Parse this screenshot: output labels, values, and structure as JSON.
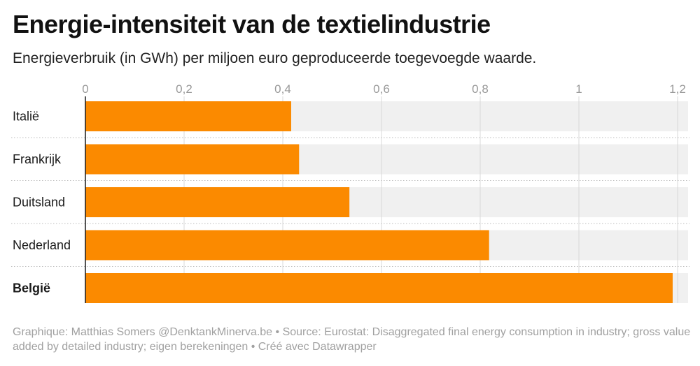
{
  "title": "Energie-intensiteit van de textielindustrie",
  "subtitle": "Energieverbruik (in GWh) per miljoen euro geproduceerde toegevoegde waarde.",
  "footer": {
    "credit": "Graphique: Matthias Somers @DenktankMinerva.be",
    "sep1": " • ",
    "source": "Source: Eurostat: Disaggregated final energy consumption in industry; gross value added by detailed industry; eigen berekeningen",
    "sep2": " • ",
    "tool": "Créé avec Datawrapper"
  },
  "colors": {
    "bar": "#fb8a00",
    "track": "#f0f0f0",
    "grid": "#d9d9d9",
    "axis": "#1a1a1a"
  },
  "chart_data": {
    "type": "bar",
    "orientation": "horizontal",
    "categories": [
      "Italië",
      "Frankrijk",
      "Duitsland",
      "Nederland",
      "België"
    ],
    "highlight": "België",
    "values": [
      0.417,
      0.433,
      0.535,
      0.818,
      1.19
    ],
    "xlim": [
      0,
      1.2
    ],
    "ticks": [
      0,
      0.2,
      0.4,
      0.6,
      0.8,
      1,
      1.2
    ],
    "tick_labels": [
      "0",
      "0,2",
      "0,4",
      "0,6",
      "0,8",
      "1",
      "1,2"
    ],
    "grid": true
  }
}
